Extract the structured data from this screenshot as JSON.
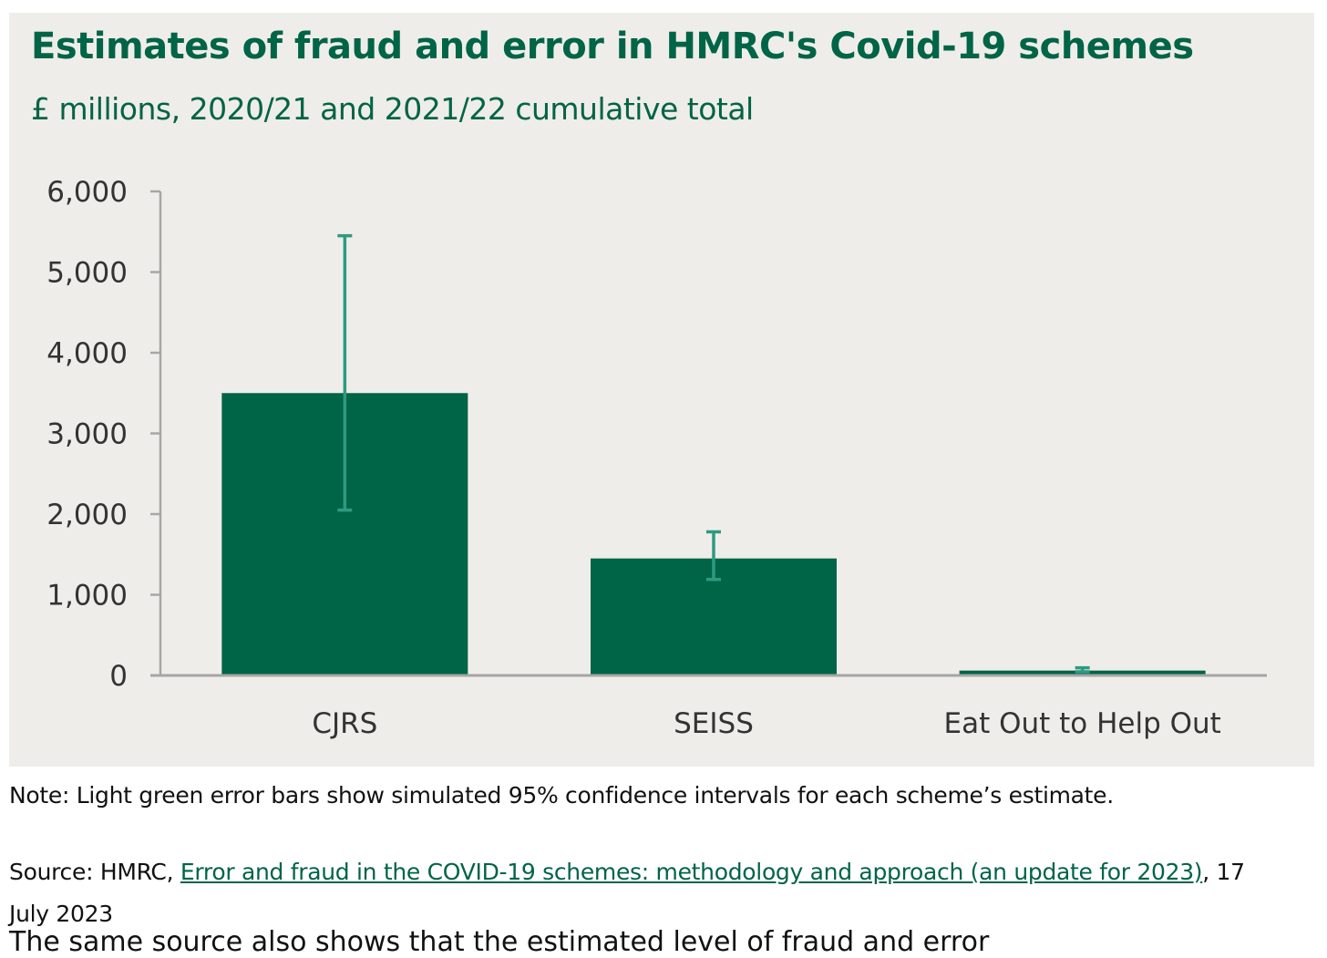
{
  "colors": {
    "bar": "#006446",
    "error_bar": "#2e9a80",
    "axis": "#a6a6a6",
    "panel": "#efedea",
    "title": "#006446"
  },
  "chart_data": {
    "type": "bar",
    "title": "Estimates of fraud and error in HMRC's Covid-19 schemes",
    "subtitle": "£ millions, 2020/21 and 2021/22 cumulative total",
    "categories": [
      "CJRS",
      "SEISS",
      "Eat Out to Help Out"
    ],
    "values": [
      3500,
      1450,
      60
    ],
    "error_low": [
      2050,
      1190,
      45
    ],
    "error_high": [
      5450,
      1780,
      95
    ],
    "ylim": [
      0,
      6000
    ],
    "yticks": [
      "0",
      "1,000",
      "2,000",
      "3,000",
      "4,000",
      "5,000",
      "6,000"
    ],
    "ytick_values": [
      0,
      1000,
      2000,
      3000,
      4000,
      5000,
      6000
    ],
    "xlabel": "",
    "ylabel": "",
    "grid": false,
    "legend": "none"
  },
  "note": "Note: Light green error bars show simulated 95% confidence intervals for each scheme’s estimate.",
  "source": {
    "prefix": "Source: HMRC, ",
    "link_text": "Error and fraud in the COVID-19 schemes: methodology and approach (an update for 2023)",
    "suffix": ", 17 July 2023"
  },
  "continuation_text": "The same source also shows that the estimated level of fraud and error"
}
